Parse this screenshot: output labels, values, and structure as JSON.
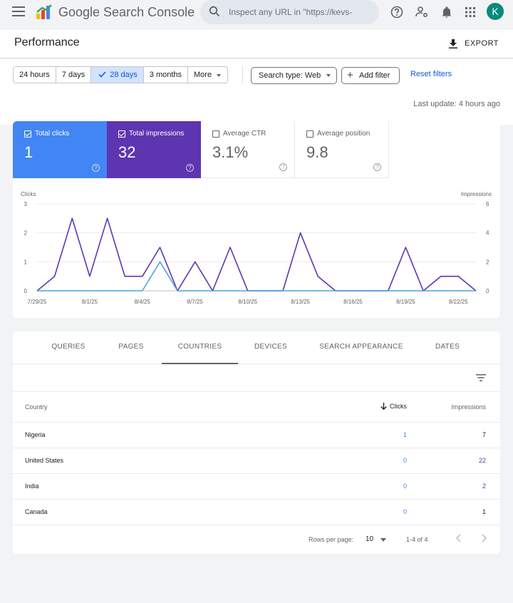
{
  "app": {
    "title": "Google Search Console",
    "search_placeholder": "Inspect any URL in \"https://kevs-",
    "avatar_initial": "K",
    "avatar_color": "#0b8a7c"
  },
  "header": {
    "title": "Performance",
    "export_label": "EXPORT"
  },
  "filters": {
    "ranges": [
      "24 hours",
      "7 days",
      "28 days",
      "3 months"
    ],
    "active_range": "28 days",
    "more_label": "More",
    "search_type_label": "Search type: Web",
    "add_filter_label": "Add filter",
    "reset_label": "Reset filters",
    "last_update": "Last update: 4 hours ago"
  },
  "metrics": {
    "clicks": {
      "label": "Total clicks",
      "value": "1",
      "checked": true,
      "color": "#4285f4"
    },
    "impressions": {
      "label": "Total impressions",
      "value": "32",
      "checked": true,
      "color": "#5e35b1"
    },
    "ctr": {
      "label": "Average CTR",
      "value": "3.1%",
      "checked": false
    },
    "position": {
      "label": "Average position",
      "value": "9.8",
      "checked": false
    }
  },
  "chart_data": {
    "type": "line",
    "left_axis_label": "Clicks",
    "right_axis_label": "Impressions",
    "left_ylim": [
      0,
      3
    ],
    "right_ylim": [
      0,
      6
    ],
    "left_ticks": [
      "0",
      "1",
      "2",
      "3"
    ],
    "right_ticks": [
      "0",
      "2",
      "4",
      "6"
    ],
    "x_tick_labels": [
      "7/29/25",
      "8/1/25",
      "8/4/25",
      "8/7/25",
      "8/10/25",
      "8/13/25",
      "8/16/25",
      "8/19/25",
      "8/22/25"
    ],
    "x_tick_indices": [
      0,
      3,
      6,
      9,
      12,
      15,
      18,
      21,
      24
    ],
    "x_count": 26,
    "grid": true,
    "series": [
      {
        "name": "Impressions",
        "axis": "right",
        "color": "#5e35b1",
        "values": [
          0,
          1,
          5,
          1,
          5,
          1,
          1,
          3,
          0,
          2,
          0,
          3,
          0,
          0,
          0,
          4,
          1,
          0,
          0,
          0,
          0,
          3,
          0,
          1,
          1,
          0
        ]
      },
      {
        "name": "Clicks",
        "axis": "left",
        "color": "#4fa3e0",
        "values": [
          0,
          0,
          0,
          0,
          0,
          0,
          0,
          1,
          0,
          0,
          0,
          0,
          0,
          0,
          0,
          0,
          0,
          0,
          0,
          0,
          0,
          0,
          0,
          0,
          0,
          0
        ]
      }
    ]
  },
  "table": {
    "tabs": [
      "QUERIES",
      "PAGES",
      "COUNTRIES",
      "DEVICES",
      "SEARCH APPEARANCE",
      "DATES"
    ],
    "active_tab": "COUNTRIES",
    "columns": {
      "country": "Country",
      "clicks": "Clicks",
      "impressions": "Impressions"
    },
    "rows": [
      {
        "country": "Nigeria",
        "clicks": "1",
        "impressions": "7"
      },
      {
        "country": "United States",
        "clicks": "0",
        "impressions": "22"
      },
      {
        "country": "India",
        "clicks": "0",
        "impressions": "2"
      },
      {
        "country": "Canada",
        "clicks": "0",
        "impressions": "1"
      }
    ],
    "rows_per_page_label": "Rows per page:",
    "rows_per_page": "10",
    "range_label": "1-4 of 4"
  }
}
